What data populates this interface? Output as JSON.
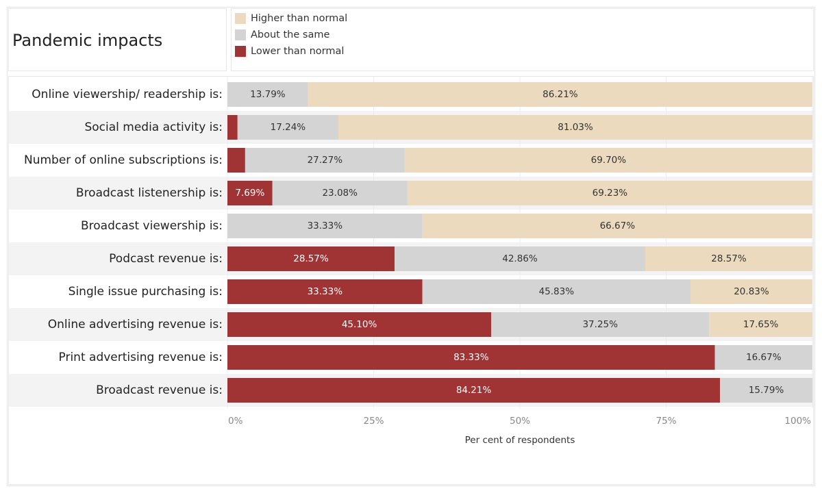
{
  "chart_data": {
    "type": "stacked-bar-horizontal",
    "title": "Pandemic impacts",
    "categories": [
      "Online viewership/ readership is:",
      "Social media activity is:",
      "Number of online subscriptions is:",
      "Broadcast listenership is:",
      "Broadcast viewership is:",
      "Podcast revenue is:",
      "Single issue purchasing is:",
      "Online advertising revenue is:",
      "Print advertising revenue is:",
      "Broadcast revenue is:"
    ],
    "series": [
      {
        "name": "Lower than normal",
        "color": "#a03434",
        "values": [
          null,
          1.73,
          3.03,
          7.69,
          null,
          28.57,
          33.33,
          45.1,
          83.33,
          84.21
        ],
        "value_labels": [
          null,
          null,
          null,
          "7.69%",
          null,
          "28.57%",
          "33.33%",
          "45.10%",
          "83.33%",
          "84.21%"
        ]
      },
      {
        "name": "About the same",
        "color": "#d4d4d4",
        "values": [
          13.79,
          17.24,
          27.27,
          23.08,
          33.33,
          42.86,
          45.83,
          37.25,
          16.67,
          15.79
        ],
        "value_labels": [
          "13.79%",
          "17.24%",
          "27.27%",
          "23.08%",
          "33.33%",
          "42.86%",
          "45.83%",
          "37.25%",
          "16.67%",
          "15.79%"
        ]
      },
      {
        "name": "Higher than normal",
        "color": "#ebdabd",
        "values": [
          86.21,
          81.03,
          69.7,
          69.23,
          66.67,
          28.57,
          20.83,
          17.65,
          null,
          null
        ],
        "value_labels": [
          "86.21%",
          "81.03%",
          "69.70%",
          "69.23%",
          "66.67%",
          "28.57%",
          "20.83%",
          "17.65%",
          null,
          null
        ]
      }
    ],
    "x_label": "Per cent of respondents",
    "xlim": [
      0,
      100
    ],
    "xticks": [
      {
        "value": 0,
        "label": "0%"
      },
      {
        "value": 25,
        "label": "25%"
      },
      {
        "value": 50,
        "label": "50%"
      },
      {
        "value": 75,
        "label": "75%"
      },
      {
        "value": 100,
        "label": "100%"
      }
    ],
    "grid": true
  }
}
